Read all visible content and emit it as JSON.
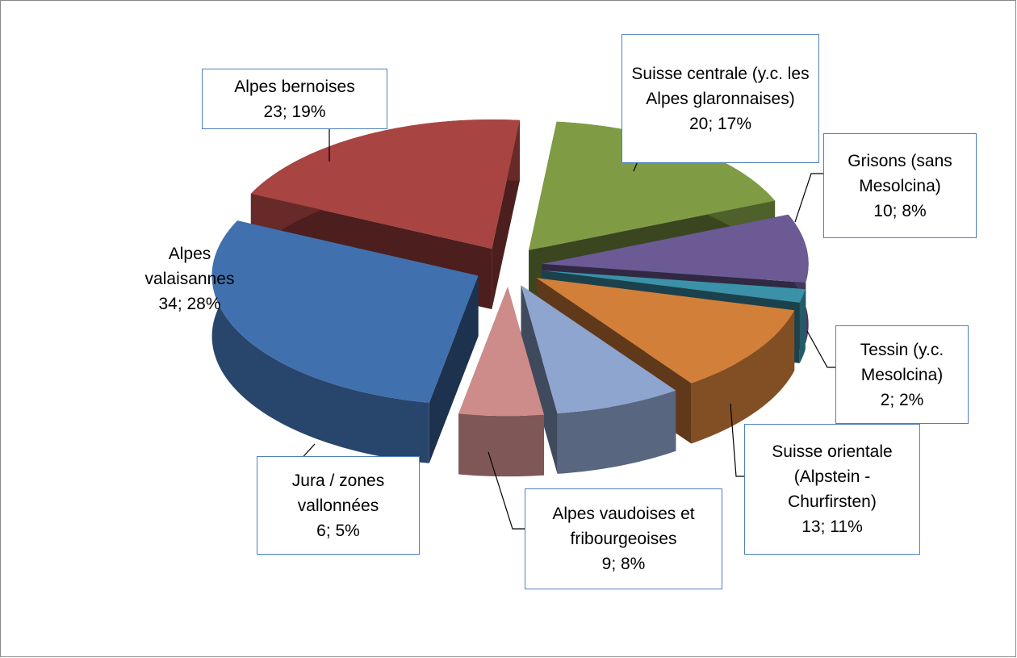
{
  "chart_data": {
    "type": "pie",
    "three_d": true,
    "exploded": true,
    "categories": [
      "Suisse centrale (y.c. les Alpes glaronnaises)",
      "Grisons (sans Mesolcina)",
      "Tessin (y.c. Mesolcina)",
      "Suisse orientale (Alpstein - Churfirsten)",
      "Alpes vaudoises et fribourgeoises",
      "Jura / zones vallonnées",
      "Alpes valaisannes",
      "Alpes bernoises"
    ],
    "values": [
      20,
      10,
      2,
      13,
      9,
      6,
      34,
      23
    ],
    "value_labels": [
      "20; 17%",
      "10; 8%",
      "2; 2%",
      "13; 11%",
      "9; 8%",
      "6; 5%",
      "34; 28%",
      "23; 19%"
    ],
    "colors": [
      "#7f9c44",
      "#6c5a95",
      "#3b91a8",
      "#d27f3a",
      "#8ea5cf",
      "#cd8c8a",
      "#4170ae",
      "#a84442"
    ]
  }
}
